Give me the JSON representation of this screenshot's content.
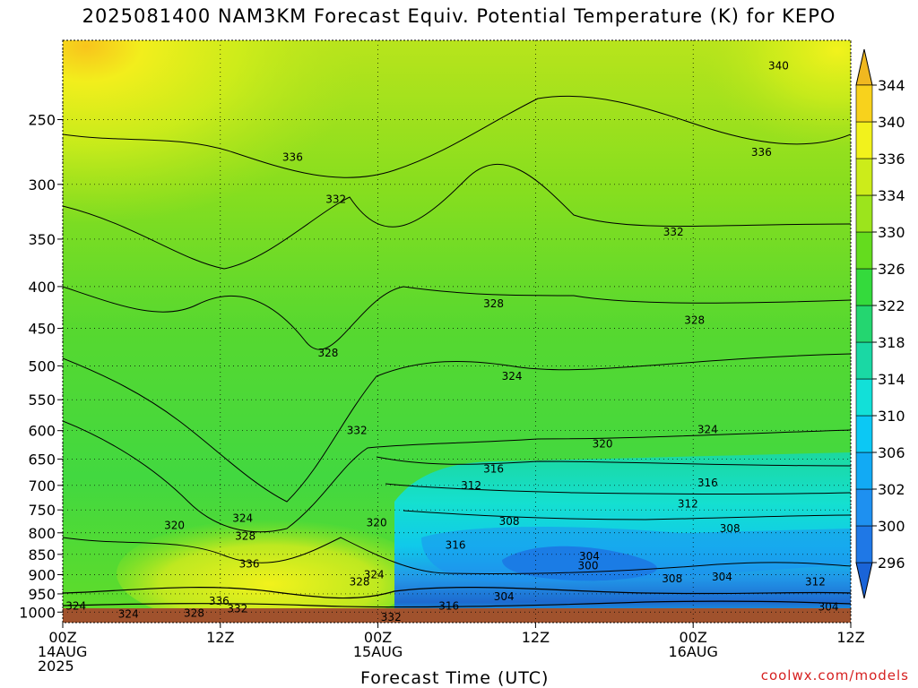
{
  "chart_data": {
    "type": "heatmap",
    "title": "2025081400 NAM3KM Forecast Equiv. Potential Temperature (K) for KEPO",
    "xlabel": "Forecast Time (UTC)",
    "ylabel": "",
    "x_ticks": [
      {
        "hour": 0,
        "lines": [
          "00Z",
          "14AUG",
          "2025"
        ]
      },
      {
        "hour": 12,
        "lines": [
          "12Z"
        ]
      },
      {
        "hour": 24,
        "lines": [
          "00Z",
          "15AUG"
        ]
      },
      {
        "hour": 36,
        "lines": [
          "12Z"
        ]
      },
      {
        "hour": 48,
        "lines": [
          "00Z",
          "16AUG"
        ]
      },
      {
        "hour": 60,
        "lines": [
          "12Z"
        ]
      }
    ],
    "xlim": [
      0,
      60
    ],
    "y_ticks": [
      250,
      300,
      350,
      400,
      450,
      500,
      550,
      600,
      650,
      700,
      750,
      800,
      850,
      900,
      950,
      1000
    ],
    "y_scale": "log-pressure (inverted)",
    "ylim": [
      1030,
      200
    ],
    "colorbar": {
      "position": "right",
      "levels": [
        296,
        300,
        302,
        306,
        310,
        314,
        318,
        322,
        326,
        330,
        334,
        336,
        340,
        344
      ],
      "colors": [
        "#1a64d8",
        "#1f78e6",
        "#1e90f0",
        "#12aaf4",
        "#0cc8f4",
        "#12e0d8",
        "#1ad8a4",
        "#24d670",
        "#34da3c",
        "#64dc1e",
        "#9ce41c",
        "#ccec1a",
        "#f2f21c",
        "#f8d21c",
        "#f0b820"
      ]
    },
    "contour_labels": [
      {
        "hour": 54.5,
        "p": 215,
        "text": "340"
      },
      {
        "hour": 17.5,
        "p": 278,
        "text": "336"
      },
      {
        "hour": 53.2,
        "p": 274,
        "text": "336"
      },
      {
        "hour": 20.8,
        "p": 313,
        "text": "332"
      },
      {
        "hour": 46.5,
        "p": 343,
        "text": "332"
      },
      {
        "hour": 32.8,
        "p": 420,
        "text": "328"
      },
      {
        "hour": 48.1,
        "p": 440,
        "text": "328"
      },
      {
        "hour": 20.2,
        "p": 482,
        "text": "328"
      },
      {
        "hour": 34.2,
        "p": 515,
        "text": "324"
      },
      {
        "hour": 49.1,
        "p": 598,
        "text": "324"
      },
      {
        "hour": 22.4,
        "p": 600,
        "text": "332"
      },
      {
        "hour": 41.1,
        "p": 623,
        "text": "320"
      },
      {
        "hour": 32.8,
        "p": 668,
        "text": "316"
      },
      {
        "hour": 49.1,
        "p": 695,
        "text": "316"
      },
      {
        "hour": 31.1,
        "p": 700,
        "text": "312"
      },
      {
        "hour": 47.6,
        "p": 737,
        "text": "312"
      },
      {
        "hour": 13.7,
        "p": 768,
        "text": "324"
      },
      {
        "hour": 8.5,
        "p": 783,
        "text": "320"
      },
      {
        "hour": 34.0,
        "p": 775,
        "text": "308"
      },
      {
        "hour": 23.9,
        "p": 778,
        "text": "320"
      },
      {
        "hour": 50.8,
        "p": 790,
        "text": "308"
      },
      {
        "hour": 13.9,
        "p": 808,
        "text": "328"
      },
      {
        "hour": 29.9,
        "p": 828,
        "text": "316"
      },
      {
        "hour": 40.1,
        "p": 855,
        "text": "304"
      },
      {
        "hour": 14.2,
        "p": 873,
        "text": "336"
      },
      {
        "hour": 40.0,
        "p": 878,
        "text": "300"
      },
      {
        "hour": 23.7,
        "p": 900,
        "text": "324"
      },
      {
        "hour": 22.6,
        "p": 918,
        "text": "328"
      },
      {
        "hour": 46.4,
        "p": 910,
        "text": "308"
      },
      {
        "hour": 50.2,
        "p": 906,
        "text": "304"
      },
      {
        "hour": 57.3,
        "p": 918,
        "text": "312"
      },
      {
        "hour": 33.6,
        "p": 957,
        "text": "304"
      },
      {
        "hour": 11.9,
        "p": 970,
        "text": "336"
      },
      {
        "hour": 1.0,
        "p": 983,
        "text": "324"
      },
      {
        "hour": 29.4,
        "p": 983,
        "text": "316"
      },
      {
        "hour": 58.3,
        "p": 985,
        "text": "304"
      },
      {
        "hour": 13.3,
        "p": 990,
        "text": "332"
      },
      {
        "hour": 5.0,
        "p": 1005,
        "text": "324"
      },
      {
        "hour": 10.0,
        "p": 1003,
        "text": "328"
      },
      {
        "hour": 25.0,
        "p": 1015,
        "text": "332"
      }
    ]
  },
  "credit": "coolwx.com/models"
}
